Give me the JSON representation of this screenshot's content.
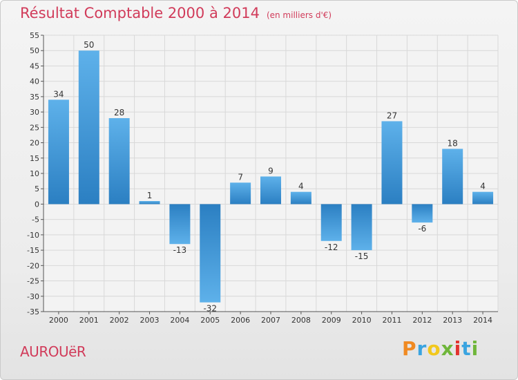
{
  "header": {
    "title": "Résultat Comptable 2000 à 2014",
    "subtitle": "(en milliers d'€)"
  },
  "footer": {
    "commune": "AUROUëR",
    "logo_letters": [
      "P",
      "r",
      "o",
      "x",
      "i",
      "t",
      "i"
    ],
    "logo_colors": [
      "#f08a22",
      "#3aa4e0",
      "#f2c81d",
      "#6fb63a",
      "#e2322f",
      "#3aa4e0",
      "#6fb63a"
    ]
  },
  "colors": {
    "title": "#d13b5a",
    "bar_light": "#5eb1ea",
    "bar_dark": "#2b7fc2",
    "grid": "#d8d8d8",
    "axis": "#555555"
  },
  "chart_data": {
    "type": "bar",
    "title": "Résultat Comptable 2000 à 2014",
    "subtitle": "(en milliers d'€)",
    "categories": [
      "2000",
      "2001",
      "2002",
      "2003",
      "2004",
      "2005",
      "2006",
      "2007",
      "2008",
      "2009",
      "2010",
      "2011",
      "2012",
      "2013",
      "2014"
    ],
    "values": [
      34,
      50,
      28,
      1,
      -13,
      -32,
      7,
      9,
      4,
      -12,
      -15,
      27,
      -6,
      18,
      4
    ],
    "value_labels": [
      "34",
      "50",
      "28",
      "1",
      "-13",
      "-32",
      "7",
      "9",
      "4",
      "-12",
      "-15",
      "27",
      "-6",
      "18",
      "4"
    ],
    "ylim": [
      -35,
      55
    ],
    "yticks": [
      55,
      50,
      45,
      40,
      35,
      30,
      25,
      20,
      15,
      10,
      5,
      0,
      -5,
      -10,
      -15,
      -20,
      -25,
      -30,
      -35
    ],
    "ytick_labels": [
      "55",
      "50",
      "45",
      "40",
      "35",
      "30",
      "25",
      "20",
      "15",
      "10",
      "5",
      "0",
      "-5",
      "-10",
      "-15",
      "-20",
      "-25",
      "-30",
      "-35"
    ],
    "grid": true,
    "legend": "none"
  }
}
